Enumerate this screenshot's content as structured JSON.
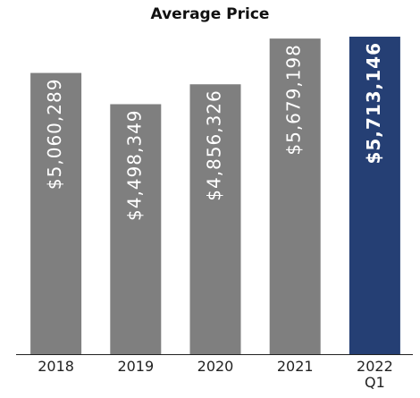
{
  "chart_data": {
    "type": "bar",
    "title": "Average Price",
    "categories": [
      "2018",
      "2019",
      "2020",
      "2021",
      "2022 Q1"
    ],
    "values": [
      5060289,
      4498349,
      4856326,
      5679198,
      5713146
    ],
    "value_labels": [
      "$5,060,289",
      "$4,498,349",
      "$4,856,326",
      "$5,679,198",
      "$5,713,146"
    ],
    "colors": [
      "#7f7f7f",
      "#7f7f7f",
      "#7f7f7f",
      "#7f7f7f",
      "#253f74"
    ]
  }
}
